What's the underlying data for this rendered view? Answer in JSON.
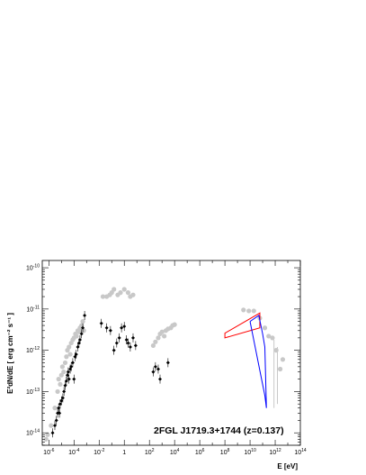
{
  "chart_data": {
    "type": "scatter",
    "title": "",
    "annotation": "2FGL J1719.3+1744 (z=0.137)",
    "xlabel": "E [eV]",
    "ylabel": "E²dN/dE [ erg cm⁻² s⁻¹ ]",
    "x_scale": "log",
    "y_scale": "log",
    "xlim": [
      3e-07,
      100000000000000.0
    ],
    "ylim": [
      5e-15,
      1.5e-10
    ],
    "x_ticks": [
      {
        "v": 1e-06,
        "e": "-6"
      },
      {
        "v": 0.0001,
        "e": "-4"
      },
      {
        "v": 0.01,
        "e": "-2"
      },
      {
        "v": 1,
        "t": "1"
      },
      {
        "v": 100.0,
        "e": "2"
      },
      {
        "v": 10000.0,
        "e": "4"
      },
      {
        "v": 1000000.0,
        "e": "6"
      },
      {
        "v": 100000000.0,
        "e": "8"
      },
      {
        "v": 10000000000.0,
        "e": "10"
      },
      {
        "v": 1000000000000.0,
        "e": "12"
      },
      {
        "v": 100000000000000.0,
        "e": "14"
      }
    ],
    "y_ticks": [
      {
        "v": 1e-14,
        "e": "-14"
      },
      {
        "v": 1e-13,
        "e": "-13"
      },
      {
        "v": 1e-12,
        "e": "-12"
      },
      {
        "v": 1e-11,
        "e": "-11"
      },
      {
        "v": 1e-10,
        "e": "-10"
      }
    ],
    "colors": {
      "archival": "#c8c8c8",
      "simultaneous": "#000000",
      "fermi_bowtie": "#ff0000",
      "bowtie_2": "#0000ff"
    },
    "series": [
      {
        "key": "archival",
        "marker": "circle",
        "points": [
          [
            6e-07,
            7e-15
          ],
          [
            8e-07,
            9e-15
          ],
          [
            1.5e-06,
            1.5e-14
          ],
          [
            3e-06,
            4e-14
          ],
          [
            5e-06,
            1e-13
          ],
          [
            6e-06,
            2e-13
          ],
          [
            8e-06,
            1.5e-13
          ],
          [
            1e-05,
            2.5e-13
          ],
          [
            1.2e-05,
            4e-13
          ],
          [
            1.5e-05,
            3e-13
          ],
          [
            2e-05,
            5e-13
          ],
          [
            2.5e-05,
            7e-13
          ],
          [
            3e-05,
            1e-12
          ],
          [
            4e-05,
            1.2e-12
          ],
          [
            5e-05,
            8e-13
          ],
          [
            6e-05,
            1.5e-12
          ],
          [
            8e-05,
            1.8e-12
          ],
          [
            0.0001,
            2e-12
          ],
          [
            0.00013,
            2.5e-12
          ],
          [
            0.00016,
            2.2e-12
          ],
          [
            0.0002,
            3e-12
          ],
          [
            0.00025,
            2.8e-12
          ],
          [
            0.0003,
            3.5e-12
          ],
          [
            0.0004,
            4e-12
          ],
          [
            0.0005,
            5e-12
          ],
          [
            0.0006,
            3e-12
          ],
          [
            0.02,
            2e-11
          ],
          [
            0.04,
            2e-11
          ],
          [
            0.07,
            2.2e-11
          ],
          [
            0.1,
            2.5e-11
          ],
          [
            0.15,
            3e-11
          ],
          [
            0.3,
            2.2e-11
          ],
          [
            0.5,
            2.5e-11
          ],
          [
            1,
            3e-11
          ],
          [
            2,
            2.5e-11
          ],
          [
            3,
            2e-11
          ],
          [
            5,
            2.2e-11
          ],
          [
            200,
            1.3e-12
          ],
          [
            300,
            1.6e-12
          ],
          [
            500,
            2e-12
          ],
          [
            700,
            2.5e-12
          ],
          [
            1000,
            2.8e-12
          ],
          [
            1500,
            2.2e-12
          ],
          [
            2000,
            3e-12
          ],
          [
            3000,
            3.3e-12
          ],
          [
            5000,
            3.5e-12
          ],
          [
            7000,
            4e-12
          ],
          [
            10000,
            4.2e-12
          ],
          [
            3000000000.0,
            9.5e-12
          ],
          [
            8000000000.0,
            9e-12
          ],
          [
            20000000000.0,
            9e-12
          ],
          [
            60000000000.0,
            6e-12
          ],
          [
            150000000000.0,
            3.5e-12
          ],
          [
            300000000000.0,
            2.2e-12
          ],
          [
            600000000000.0,
            2e-12
          ],
          [
            1200000000000.0,
            1e-12
          ],
          [
            2500000000000.0,
            3.5e-13
          ],
          [
            4000000000000.0,
            6e-13
          ]
        ]
      },
      {
        "key": "simultaneous",
        "marker": "diamond",
        "points": [
          [
            2e-06,
            1e-14
          ],
          [
            3e-06,
            1.5e-14
          ],
          [
            4e-06,
            2e-14
          ],
          [
            5e-06,
            3e-14
          ],
          [
            6e-06,
            4e-14
          ],
          [
            7e-06,
            3e-14
          ],
          [
            8e-06,
            5e-14
          ],
          [
            1e-05,
            6e-14
          ],
          [
            1.3e-05,
            7e-14
          ],
          [
            1.6e-05,
            1e-13
          ],
          [
            2e-05,
            1.4e-13
          ],
          [
            2.5e-05,
            1.8e-13
          ],
          [
            3e-05,
            2.5e-13
          ],
          [
            3.5e-05,
            3e-13
          ],
          [
            4e-05,
            2e-13
          ],
          [
            5e-05,
            3.5e-13
          ],
          [
            6e-05,
            4e-13
          ],
          [
            8e-05,
            5e-13
          ],
          [
            0.0001,
            2e-13
          ],
          [
            0.00012,
            7e-13
          ],
          [
            0.00015,
            8e-13
          ],
          [
            0.0002,
            1.2e-12
          ],
          [
            0.00025,
            1.5e-12
          ],
          [
            0.0003,
            1.8e-12
          ],
          [
            0.0004,
            2.5e-12
          ],
          [
            0.0005,
            3.5e-12
          ],
          [
            0.0007,
            7e-12
          ],
          [
            0.015,
            4.5e-12
          ],
          [
            0.04,
            3.5e-12
          ],
          [
            0.08,
            3e-12
          ],
          [
            0.15,
            1e-12
          ],
          [
            0.25,
            1.5e-12
          ],
          [
            0.4,
            2e-12
          ],
          [
            0.6,
            3.5e-12
          ],
          [
            1,
            3.8e-12
          ],
          [
            1.5,
            1.8e-12
          ],
          [
            2,
            1.5e-12
          ],
          [
            3,
            1.2e-12
          ],
          [
            5,
            2e-12
          ],
          [
            8,
            1.3e-12
          ],
          [
            200,
            3e-13
          ],
          [
            300,
            4e-13
          ],
          [
            500,
            3.5e-13
          ],
          [
            700,
            2e-13
          ],
          [
            3000,
            5e-13
          ]
        ]
      }
    ],
    "fermi_bowtie": [
      [
        100000000.0,
        2e-12
      ],
      [
        100000000.0,
        2.6e-12
      ],
      [
        60000000000.0,
        8e-12
      ],
      [
        60000000000.0,
        3.5e-12
      ]
    ],
    "blue_bowtie": [
      [
        10000000000.0,
        5e-12
      ],
      [
        50000000000.0,
        7e-12
      ],
      [
        100000000000.0,
        2.5e-12
      ],
      [
        150000000000.0,
        1.2e-12
      ],
      [
        200000000000.0,
        4e-14
      ],
      [
        150000000000.0,
        8e-14
      ],
      [
        10000000000.0,
        5e-12
      ]
    ],
    "upper_limits": [
      {
        "x": 800000000000.0,
        "top": 1.8e-12,
        "bottom": 4e-14
      },
      {
        "x": 1500000000000.0,
        "top": 1.2e-12,
        "bottom": 5e-14
      }
    ]
  }
}
